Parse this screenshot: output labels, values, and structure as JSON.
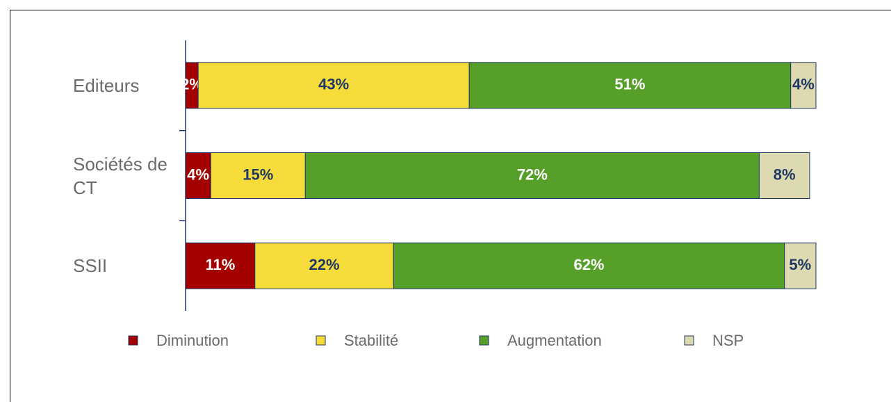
{
  "chart_data": {
    "type": "stacked_barh",
    "categories": [
      "Editeurs",
      "Sociétés de CT",
      "SSII"
    ],
    "xlim": [
      0,
      100
    ],
    "series": [
      {
        "name": "Diminution",
        "color": "#a50000",
        "label_color": "#ffffff",
        "values": [
          2,
          4,
          11
        ],
        "value_labels": [
          "2%",
          "4%",
          "11%"
        ]
      },
      {
        "name": "Stabilité",
        "color": "#f6dc3a",
        "label_color": "#1f3864",
        "values": [
          43,
          15,
          22
        ],
        "value_labels": [
          "43%",
          "15%",
          "22%"
        ]
      },
      {
        "name": "Augmentation",
        "color": "#56a02a",
        "label_color": "#ffffff",
        "values": [
          51,
          72,
          62
        ],
        "value_labels": [
          "51%",
          "72%",
          "62%"
        ]
      },
      {
        "name": "NSP",
        "color": "#ddd9b0",
        "label_color": "#1f3864",
        "values": [
          4,
          8,
          5
        ],
        "value_labels": [
          "4%",
          "8%",
          "5%"
        ]
      }
    ],
    "legend": "bottom"
  }
}
